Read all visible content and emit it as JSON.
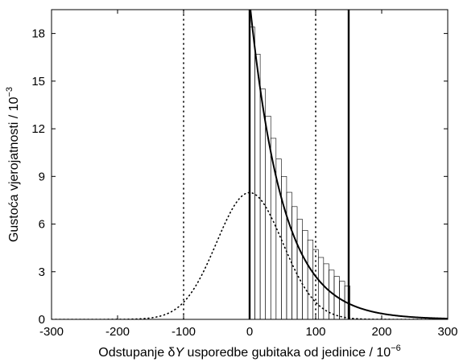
{
  "chart_data": {
    "type": "line",
    "xlabel": {
      "pre": "Odstupanje ",
      "delta": "δ",
      "var": "Y",
      "post": " usporedbe gubitaka od jedinice / 10",
      "exp": "−6"
    },
    "ylabel": {
      "text": "Gustoća vjerojatnosti / 10",
      "exp": "−3"
    },
    "xlim": [
      -300,
      300
    ],
    "ylim": [
      0,
      19.5
    ],
    "xticks": [
      -300,
      -200,
      -100,
      0,
      100,
      200,
      300
    ],
    "yticks": [
      0,
      3,
      6,
      9,
      12,
      15,
      18
    ],
    "grid": false,
    "series": [
      {
        "style": "dotted",
        "shape": "gaussian",
        "mean": 0,
        "std_dev": 50,
        "peak": 7.98
      },
      {
        "style": "solid",
        "shape": "exponential",
        "x_start": 0,
        "scale": 50,
        "peak": 20
      },
      {
        "style": "histogram",
        "bin_start": 0,
        "bin_width": 8,
        "bin_end": 152,
        "values": [
          18.4,
          16.7,
          14.5,
          12.8,
          11.4,
          10.1,
          9.0,
          8.0,
          7.1,
          6.3,
          5.6,
          5.0,
          4.4,
          3.9,
          3.5,
          3.1,
          2.7,
          2.4,
          2.1
        ]
      }
    ],
    "vertical_lines": [
      {
        "x": -100,
        "style": "dotted"
      },
      {
        "x": 100,
        "style": "dotted"
      },
      {
        "x": 0,
        "style": "solid"
      },
      {
        "x": 150,
        "style": "solid"
      }
    ]
  }
}
